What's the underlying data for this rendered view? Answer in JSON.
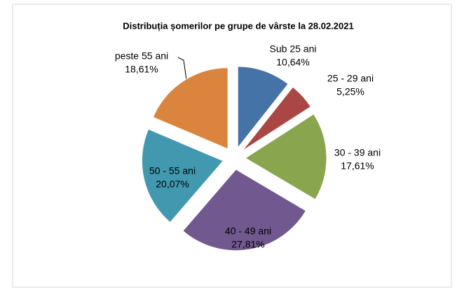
{
  "chart_data": {
    "type": "pie",
    "title": "Distribuția șomerilor pe grupe de vârste la 28.02.2021",
    "categories": [
      "Sub 25 ani",
      "25 - 29 ani",
      "30 - 39 ani",
      "40 - 49 ani",
      "50 - 55 ani",
      "peste 55 ani"
    ],
    "values": [
      10.64,
      5.25,
      17.61,
      27.81,
      20.07,
      18.61
    ],
    "value_labels": [
      "10,64%",
      "5,25%",
      "17,61%",
      "27,81%",
      "20,07%",
      "18,61%"
    ],
    "colors": [
      "#4572a7",
      "#aa4643",
      "#89a54e",
      "#71588f",
      "#4198af",
      "#db843d"
    ],
    "exploded": true
  }
}
